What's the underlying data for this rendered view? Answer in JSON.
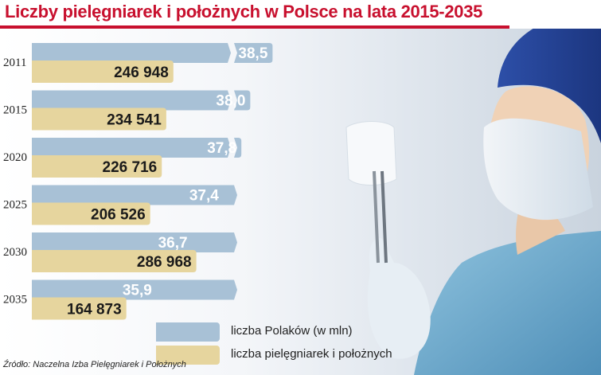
{
  "title": "Liczby pielęgniarek i położnych w Polsce na lata 2015-2035",
  "source": "Źródło: Naczelna Izba Pielęgniarek i Położnych",
  "legend": {
    "population": "liczba Polaków (w mln)",
    "nurses": "liczba pielęgniarek i położnych"
  },
  "colors": {
    "population": "#a8c1d6",
    "nurses": "#e6d59e",
    "title": "#c8102e"
  },
  "chart_data": {
    "type": "bar",
    "categories": [
      "2011",
      "2015",
      "2020",
      "2025",
      "2030",
      "2035"
    ],
    "series": [
      {
        "name": "liczba Polaków (w mln)",
        "values": [
          38.5,
          38.0,
          37.8,
          37.4,
          36.7,
          35.9
        ],
        "labels": [
          "38,5",
          "38,0",
          "37,8",
          "37,4",
          "36,7",
          "35,9"
        ],
        "axis_break": true
      },
      {
        "name": "liczba pielęgniarek i położnych",
        "values": [
          246948,
          234541,
          226716,
          206526,
          286968,
          164873
        ],
        "labels": [
          "246 948",
          "234 541",
          "226 716",
          "206 526",
          "286 968",
          "164 873"
        ]
      }
    ]
  }
}
